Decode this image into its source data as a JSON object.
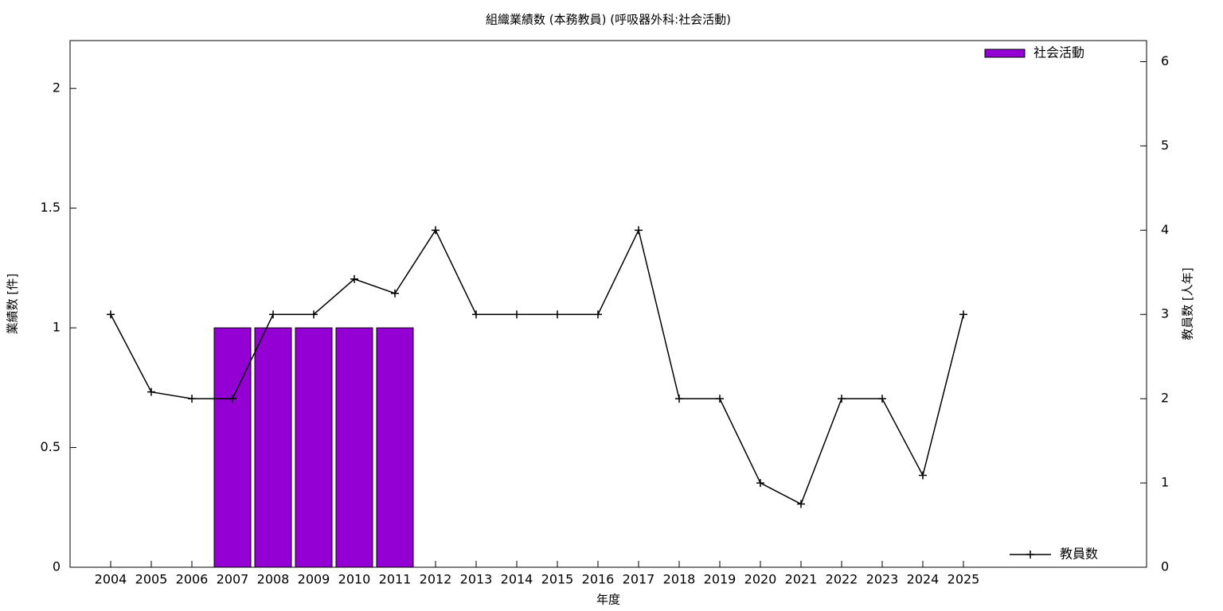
{
  "chart_data": {
    "type": "bar-line",
    "title": "組織業績数 (本務教員) (呼吸器外科:社会活動)",
    "x_label": "年度",
    "y_label": "業績数 [件]",
    "y2_label": "教員数 [人年]",
    "categories": [
      "2004",
      "2005",
      "2006",
      "2007",
      "2008",
      "2009",
      "2010",
      "2011",
      "2012",
      "2013",
      "2014",
      "2015",
      "2016",
      "2017",
      "2018",
      "2019",
      "2020",
      "2021",
      "2022",
      "2023",
      "2024",
      "2025"
    ],
    "series": [
      {
        "name": "社会活動",
        "type": "bar",
        "color": "#9400d3",
        "legend": "top-right",
        "values": [
          0,
          0,
          0,
          1,
          1,
          1,
          1,
          1,
          0,
          0,
          0,
          0,
          0,
          0,
          0,
          0,
          0,
          0,
          0,
          0,
          0,
          0
        ]
      },
      {
        "name": "教員数",
        "type": "line",
        "color": "#000000",
        "axis": "y2",
        "legend": "bottom-right",
        "values": [
          3,
          2.08,
          2,
          2,
          3,
          3,
          3.42,
          3.25,
          4,
          3,
          3,
          3,
          3,
          4,
          2,
          2,
          1,
          0.75,
          2,
          2,
          1.09,
          3
        ]
      }
    ],
    "ylim": [
      0,
      2.2
    ],
    "yticks": [
      0,
      0.5,
      1,
      1.5,
      2
    ],
    "y2lim": [
      0,
      6.25
    ],
    "y2ticks": [
      0,
      1,
      2,
      3,
      4,
      5,
      6
    ]
  }
}
